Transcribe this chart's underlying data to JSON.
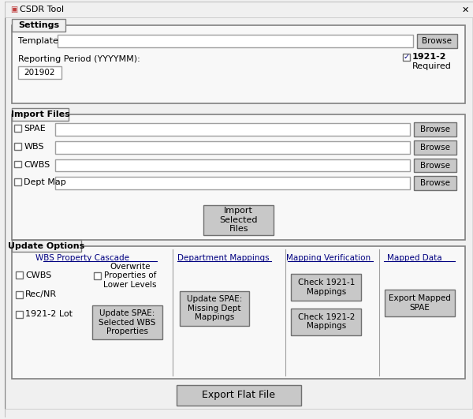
{
  "title": "CSDR Tool",
  "bg_color": "#f0f0f0",
  "window_bg": "#f0f0f0",
  "panel_bg": "#ffffff",
  "border_color": "#808080",
  "button_color": "#c8c8c8",
  "text_color": "#000000",
  "settings_tab": "Settings",
  "import_tab": "Import Files",
  "update_tab": "Update Options",
  "template_label": "Template",
  "reporting_label": "Reporting Period (YYYYMM):",
  "reporting_value": "201902",
  "checkbox_1921": "1921-2",
  "required_text": "Required",
  "file_labels": [
    "SPAE",
    "WBS",
    "CWBS",
    "Dept Map"
  ],
  "browse_btn": "Browse",
  "import_btn": "Import\nSelected\nFiles",
  "wbs_header": "WBS Property Cascade",
  "dept_header": "Department Mappings",
  "mapping_header": "Mapping Verification",
  "mapped_header": "Mapped Data",
  "wbs_checks": [
    "CWBS",
    "Rec/NR",
    "1921-2 Lot"
  ],
  "overwrite_text": "Overwrite\nProperties of\nLower Levels",
  "update_spae_btn": "Update SPAE:\nSelected WBS\nProperties",
  "update_dept_btn": "Update SPAE:\nMissing Dept\nMappings",
  "check_1921_1_btn": "Check 1921-1\nMappings",
  "check_1921_2_btn": "Check 1921-2\nMappings",
  "export_mapped_btn": "Export Mapped\nSPAE",
  "export_flat_btn": "Export Flat File"
}
